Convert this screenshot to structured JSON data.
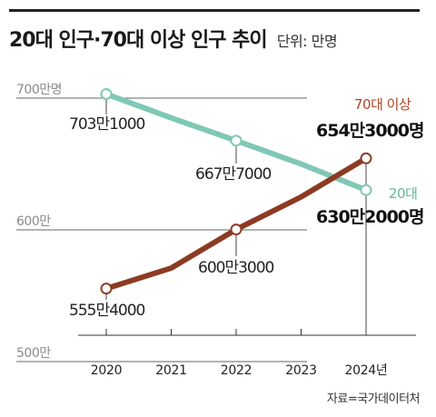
{
  "header": {
    "title": "20대 인구·70대 이상 인구 추이",
    "unit": "단위: 만명"
  },
  "source": "자료=국가데이터처",
  "colors": {
    "series_20s": "#7fc8b4",
    "series_70s": "#8c3b22",
    "label_70s_name": "#b0442a",
    "grid": "#666666",
    "text": "#222222"
  },
  "chart_data": {
    "type": "line",
    "title": "20대 인구·70대 이상 인구 추이",
    "ylabel": "단위: 만명",
    "y_unit": "만명",
    "ylim": [
      500,
      740
    ],
    "yticks": [
      {
        "value": 700,
        "label": "700만명"
      },
      {
        "value": 600,
        "label": "600만"
      },
      {
        "value": 500,
        "label": "500만"
      }
    ],
    "categories": [
      "2020",
      "2021",
      "2022",
      "2023",
      "2024년"
    ],
    "x": [
      2020,
      2021,
      2022,
      2023,
      2024
    ],
    "grid": true,
    "series": [
      {
        "name": "20대",
        "values": [
          703.1,
          685,
          667.7,
          650,
          630.2
        ],
        "markers": [
          0,
          2,
          4
        ],
        "point_labels": [
          {
            "index": 0,
            "text": "703만1000"
          },
          {
            "index": 2,
            "text": "667만7000"
          },
          {
            "index": 4,
            "text": "630만2000명"
          }
        ]
      },
      {
        "name": "70대 이상",
        "values": [
          555.4,
          571,
          600.3,
          625,
          654.3
        ],
        "markers": [
          0,
          2,
          4
        ],
        "point_labels": [
          {
            "index": 0,
            "text": "555만4000"
          },
          {
            "index": 2,
            "text": "600만3000"
          },
          {
            "index": 4,
            "text": "654만3000명"
          }
        ]
      }
    ]
  }
}
